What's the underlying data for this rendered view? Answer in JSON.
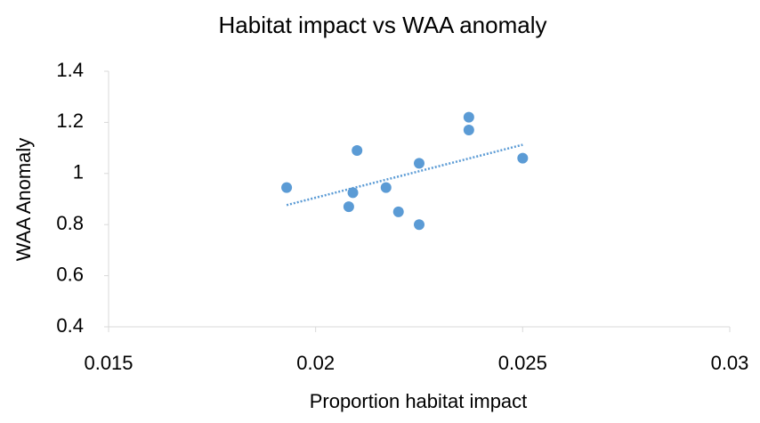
{
  "chart_data": {
    "type": "scatter",
    "title": "Habitat impact vs WAA anomaly",
    "x_label": "Proportion habitat impact",
    "y_label": "WAA Anomaly",
    "series": [
      {
        "color": "#5b9bd5",
        "x": [
          0.0193,
          0.0208,
          0.0209,
          0.021,
          0.0217,
          0.022,
          0.0225,
          0.0225,
          0.0237,
          0.0237,
          0.025
        ],
        "values": [
          0.945,
          0.87,
          0.925,
          1.09,
          0.945,
          0.85,
          0.8,
          1.04,
          1.22,
          1.17,
          1.06
        ]
      }
    ],
    "xlim": [
      0.015,
      0.03
    ],
    "xticks": [
      0.015,
      0.02,
      0.025,
      0.03
    ],
    "ylim": [
      0.4,
      1.4
    ],
    "yticks": [
      0.4,
      0.6,
      0.8,
      1,
      1.2,
      1.4
    ],
    "trendline": true,
    "grid": false
  }
}
